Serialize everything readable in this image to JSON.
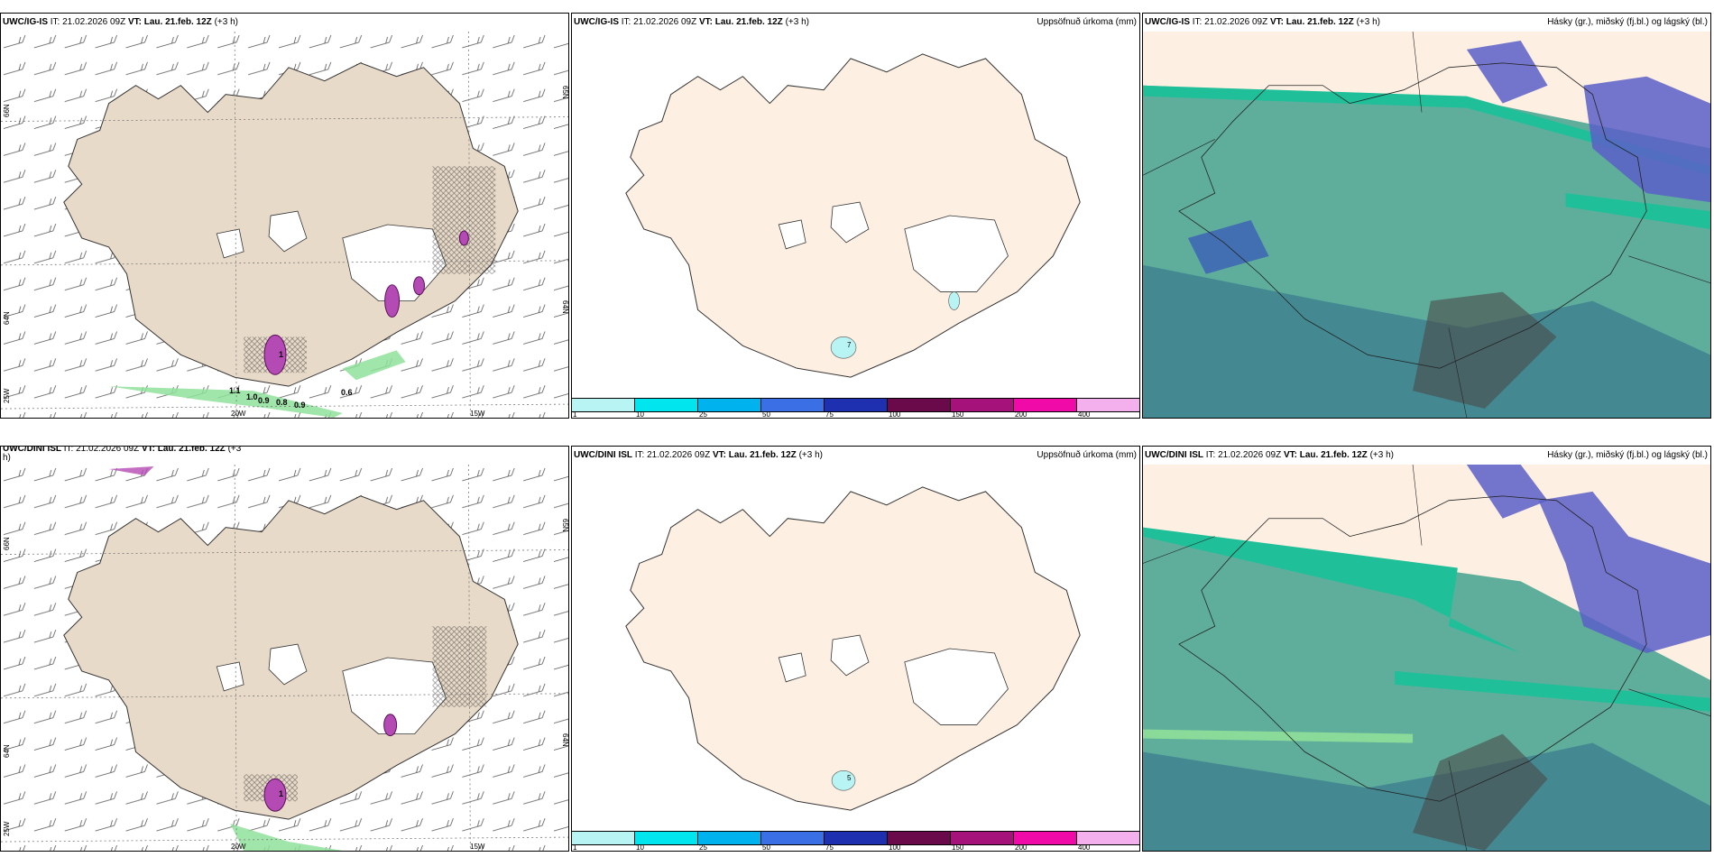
{
  "colors": {
    "land_wind": "#e8dac8",
    "land_precip": "#fdf0e2",
    "cloud_low": "#5fae9c",
    "cloud_low_dark": "#3d7f8e",
    "cloud_high": "#5b5fc8",
    "cloud_mid": "#1fbf9a",
    "shower_green": "#8fe09a",
    "convective_magenta": "#b44ab4"
  },
  "top": {
    "wind": {
      "model": "UWC/IG-IS",
      "it_label": "IT: 21.02.2026 09Z",
      "vt_label": "VT: Lau. 21.feb. 12Z",
      "offset": "(+3 h)",
      "lon_labels": [
        "20W",
        "15W"
      ],
      "lat_labels": [
        "66N",
        "64N",
        "25W"
      ],
      "lat_labels_right": [
        "65N",
        "64N"
      ],
      "values": [
        "1.1",
        "1.0",
        "0.9",
        "0.8",
        "0.9",
        "0.6",
        "1"
      ]
    },
    "precip": {
      "model": "UWC/IG-IS",
      "it_label": "IT: 21.02.2026 09Z",
      "vt_label": "VT: Lau. 21.feb. 12Z",
      "offset": "(+3 h)",
      "title": "Uppsöfnuð úrkoma (mm)",
      "values": [
        "7"
      ]
    },
    "clouds": {
      "model": "UWC/IG-IS",
      "it_label": "IT: 21.02.2026 09Z",
      "vt_label": "VT: Lau. 21.feb. 12Z",
      "offset": "(+3 h)",
      "title": "Hásky (gr.), miðský (fj.bl.) og lágský (bl.)"
    }
  },
  "bottom": {
    "wind": {
      "model": "UWC/DINI ISL",
      "it_label": "IT: 21.02.2026 09Z",
      "vt_label": "VT: Lau. 21.feb. 12Z",
      "offset": "(+3",
      "offset2": "h)",
      "lon_labels": [
        "20W",
        "15W"
      ],
      "lat_labels": [
        "66N",
        "64N",
        "25W"
      ],
      "lat_labels_right": [
        "65N",
        "64N"
      ],
      "values": [
        "1"
      ]
    },
    "precip": {
      "model": "UWC/DINI ISL",
      "it_label": "IT: 21.02.2026 09Z",
      "vt_label": "VT: Lau. 21.feb. 12Z",
      "offset": "(+3 h)",
      "title": "Uppsöfnuð úrkoma (mm)",
      "values": [
        "5"
      ]
    },
    "clouds": {
      "model": "UWC/DINI ISL",
      "it_label": "IT: 21.02.2026 09Z",
      "vt_label": "VT: Lau. 21.feb. 12Z",
      "offset": "(+3 h)",
      "title": "Hásky (gr.), miðský (fj.bl.) og lágský (bl.)"
    }
  },
  "colorbar": {
    "labels": [
      "1",
      "10",
      "25",
      "50",
      "75",
      "100",
      "150",
      "200",
      "400"
    ],
    "colors": [
      "#b8f4f4",
      "#00e5ee",
      "#00b2ee",
      "#3a6fe6",
      "#1e2fb0",
      "#6b0a4a",
      "#a4127a",
      "#f00aa8",
      "#f4b0ec"
    ]
  }
}
